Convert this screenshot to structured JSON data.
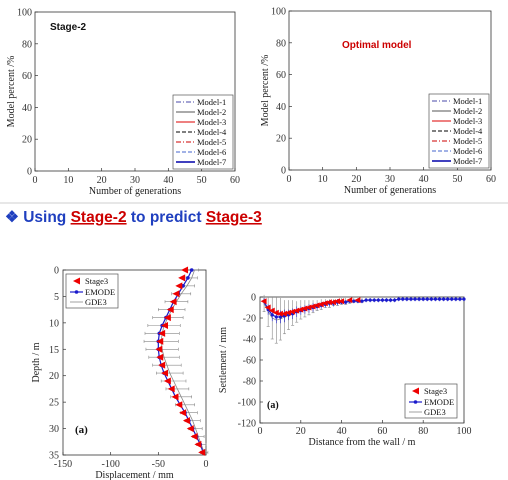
{
  "slide": {
    "heading_prefix": "❖ Using ",
    "heading_stage_a": "Stage-2",
    "heading_middle": " to predict ",
    "heading_stage_b": "Stage-3",
    "accent_color": "#cc0000",
    "heading_color": "#1f3fbf"
  },
  "chart_data": [
    {
      "type": "line",
      "annotation": "Stage-2",
      "xlabel": "Number of generations",
      "ylabel": "Model percent /%",
      "xlim": [
        0,
        60
      ],
      "ylim": [
        0,
        100
      ],
      "xticks": [
        0,
        10,
        20,
        30,
        40,
        50,
        60
      ],
      "yticks": [
        0,
        20,
        40,
        60,
        80,
        100
      ],
      "legend_position": "bottom-right",
      "series": [
        {
          "name": "Model-1",
          "color": "#4a4aaa",
          "dash": "dashdot",
          "values": []
        },
        {
          "name": "Model-2",
          "color": "#555555",
          "dash": "solid",
          "values": []
        },
        {
          "name": "Model-3",
          "color": "#dd0000",
          "dash": "solid",
          "values": []
        },
        {
          "name": "Model-4",
          "color": "#000000",
          "dash": "dashed",
          "values": []
        },
        {
          "name": "Model-5",
          "color": "#cc0000",
          "dash": "dashdot",
          "values": []
        },
        {
          "name": "Model-6",
          "color": "#4466cc",
          "dash": "dashed",
          "values": []
        },
        {
          "name": "Model-7",
          "color": "#0000aa",
          "dash": "solid",
          "values": []
        }
      ]
    },
    {
      "type": "line",
      "annotation": "Optimal model",
      "xlabel": "Number of generations",
      "ylabel": "Model percent /%",
      "xlim": [
        0,
        60
      ],
      "ylim": [
        0,
        100
      ],
      "xticks": [
        0,
        10,
        20,
        30,
        40,
        50,
        60
      ],
      "yticks": [
        0,
        20,
        40,
        60,
        80,
        100
      ],
      "legend_position": "bottom-right",
      "series": [
        {
          "name": "Model-1",
          "color": "#4a4aaa",
          "dash": "dashdot",
          "values": []
        },
        {
          "name": "Model-2",
          "color": "#555555",
          "dash": "solid",
          "values": []
        },
        {
          "name": "Model-3",
          "color": "#dd0000",
          "dash": "solid",
          "values": []
        },
        {
          "name": "Model-4",
          "color": "#000000",
          "dash": "dashed",
          "values": []
        },
        {
          "name": "Model-5",
          "color": "#cc0000",
          "dash": "dashdot",
          "values": []
        },
        {
          "name": "Model-6",
          "color": "#4466cc",
          "dash": "dashed",
          "values": []
        },
        {
          "name": "Model-7",
          "color": "#0000aa",
          "dash": "solid",
          "values": []
        }
      ]
    },
    {
      "type": "line",
      "orientation": "vertical-depth",
      "panel_label": "(a)",
      "xlabel": "Displacement / mm",
      "ylabel": "Depth / m",
      "xlim": [
        -150,
        0
      ],
      "ylim": [
        35,
        0
      ],
      "xticks": [
        -150,
        -100,
        -50,
        0
      ],
      "yticks": [
        0,
        5,
        10,
        15,
        20,
        25,
        30,
        35
      ],
      "legend_position": "top-left",
      "series": [
        {
          "name": "Stage3",
          "color": "#ee0000",
          "marker": "triangle-left",
          "depth": [
            0,
            1.5,
            3,
            4.5,
            6,
            7.5,
            9,
            10.5,
            12,
            13.5,
            15,
            16.5,
            18,
            19.5,
            21,
            22.5,
            24,
            25.5,
            27,
            28.5,
            30,
            31.5,
            33,
            34.5
          ],
          "displacement": [
            -22,
            -25,
            -28,
            -31,
            -34,
            -37,
            -40,
            -43,
            -46,
            -48,
            -49,
            -48,
            -46,
            -43,
            -40,
            -36,
            -32,
            -28,
            -24,
            -20,
            -16,
            -12,
            -8,
            -4
          ]
        },
        {
          "name": "EMODE",
          "color": "#1a1acc",
          "marker": "star",
          "depth": [
            0,
            1.5,
            3,
            4.5,
            6,
            7.5,
            9,
            10.5,
            12,
            13.5,
            15,
            16.5,
            18,
            19.5,
            21,
            22.5,
            24,
            25.5,
            27,
            28.5,
            30,
            31.5,
            33,
            34.5
          ],
          "displacement": [
            -15,
            -19,
            -24,
            -29,
            -34,
            -38,
            -42,
            -46,
            -49,
            -50,
            -50,
            -49,
            -47,
            -44,
            -40,
            -36,
            -32,
            -27,
            -22,
            -18,
            -14,
            -10,
            -6,
            -3
          ]
        },
        {
          "name": "GDE3",
          "color": "#777777",
          "marker": "errorbar",
          "depth": [
            0,
            1.5,
            3,
            4.5,
            6,
            7.5,
            9,
            10.5,
            12,
            13.5,
            15,
            16.5,
            18,
            19.5,
            21,
            22.5,
            24,
            25.5,
            27,
            28.5,
            30,
            31.5,
            33,
            34.5
          ],
          "displacement": [
            -12,
            -15,
            -20,
            -26,
            -31,
            -36,
            -40,
            -44,
            -46,
            -47,
            -46,
            -44,
            -41,
            -38,
            -34,
            -30,
            -26,
            -22,
            -18,
            -14,
            -11,
            -8,
            -5,
            -2
          ],
          "error": [
            4,
            6,
            8,
            10,
            12,
            14,
            16,
            17,
            18,
            18,
            17,
            16,
            15,
            14,
            13,
            12,
            11,
            10,
            9,
            8,
            7,
            6,
            5,
            4
          ]
        }
      ]
    },
    {
      "type": "line",
      "panel_label": "(a)",
      "xlabel": "Distance from the wall / m",
      "ylabel": "Settlement / mm",
      "xlim": [
        0,
        100
      ],
      "ylim": [
        -120,
        0
      ],
      "xticks": [
        0,
        20,
        40,
        60,
        80,
        100
      ],
      "yticks": [
        0,
        -20,
        -40,
        -60,
        -80,
        -100,
        -120
      ],
      "legend_position": "bottom-left",
      "series": [
        {
          "name": "Stage3",
          "color": "#ee0000",
          "marker": "triangle-left",
          "x": [
            2,
            4,
            6,
            8,
            10,
            12,
            14,
            16,
            18,
            20,
            22,
            24,
            26,
            28,
            30,
            32,
            34,
            36,
            38,
            40,
            44,
            48
          ],
          "y": [
            -4,
            -10,
            -13,
            -15,
            -16,
            -16,
            -15,
            -14,
            -13,
            -12,
            -11,
            -10,
            -9,
            -8,
            -7,
            -6,
            -5,
            -5,
            -4,
            -4,
            -3,
            -3
          ]
        },
        {
          "name": "EMODE",
          "color": "#1a1acc",
          "marker": "star",
          "x": [
            2,
            4,
            6,
            8,
            10,
            12,
            14,
            16,
            18,
            20,
            22,
            24,
            26,
            28,
            30,
            32,
            34,
            36,
            38,
            40,
            42,
            44,
            46,
            48,
            50,
            52,
            54,
            56,
            58,
            60,
            62,
            64,
            66,
            68,
            70,
            72,
            74,
            76,
            78,
            80,
            82,
            84,
            86,
            88,
            90,
            92,
            94,
            96,
            98,
            100
          ],
          "y": [
            -4,
            -12,
            -17,
            -19,
            -19,
            -18,
            -17,
            -16,
            -14,
            -13,
            -12,
            -11,
            -10,
            -9,
            -8,
            -7,
            -6,
            -6,
            -5,
            -5,
            -5,
            -4,
            -4,
            -4,
            -4,
            -3,
            -3,
            -3,
            -3,
            -3,
            -3,
            -3,
            -3,
            -2,
            -2,
            -2,
            -2,
            -2,
            -2,
            -2,
            -2,
            -2,
            -2,
            -2,
            -2,
            -2,
            -2,
            -2,
            -2,
            -2
          ],
          "error": [
            3,
            5,
            6,
            6,
            6,
            6,
            5,
            5,
            5,
            4,
            4,
            4,
            4,
            3,
            3,
            3,
            3,
            3,
            3,
            2,
            2,
            2,
            2,
            2,
            2,
            2,
            2,
            2,
            2,
            2,
            2,
            2,
            2,
            2,
            2,
            2,
            2,
            2,
            2,
            2,
            2,
            2,
            2,
            2,
            2,
            2,
            2,
            2,
            2,
            2
          ]
        },
        {
          "name": "GDE3",
          "color": "#777777",
          "marker": "errorbar",
          "x": [
            2,
            4,
            6,
            8,
            10,
            12,
            14,
            16,
            18,
            20,
            22,
            24,
            26,
            28,
            30,
            32,
            34,
            36,
            38,
            40,
            42,
            44,
            46,
            48,
            50
          ],
          "y": [
            -6,
            -14,
            -20,
            -22,
            -21,
            -19,
            -17,
            -15,
            -14,
            -12,
            -11,
            -10,
            -9,
            -8,
            -7,
            -6,
            -6,
            -5,
            -5,
            -4,
            -4,
            -4,
            -3,
            -3,
            -3
          ],
          "error": [
            8,
            14,
            20,
            22,
            20,
            16,
            14,
            12,
            10,
            9,
            8,
            7,
            6,
            5,
            5,
            4,
            4,
            3,
            3,
            3,
            3,
            2,
            2,
            2,
            2
          ]
        }
      ]
    }
  ]
}
